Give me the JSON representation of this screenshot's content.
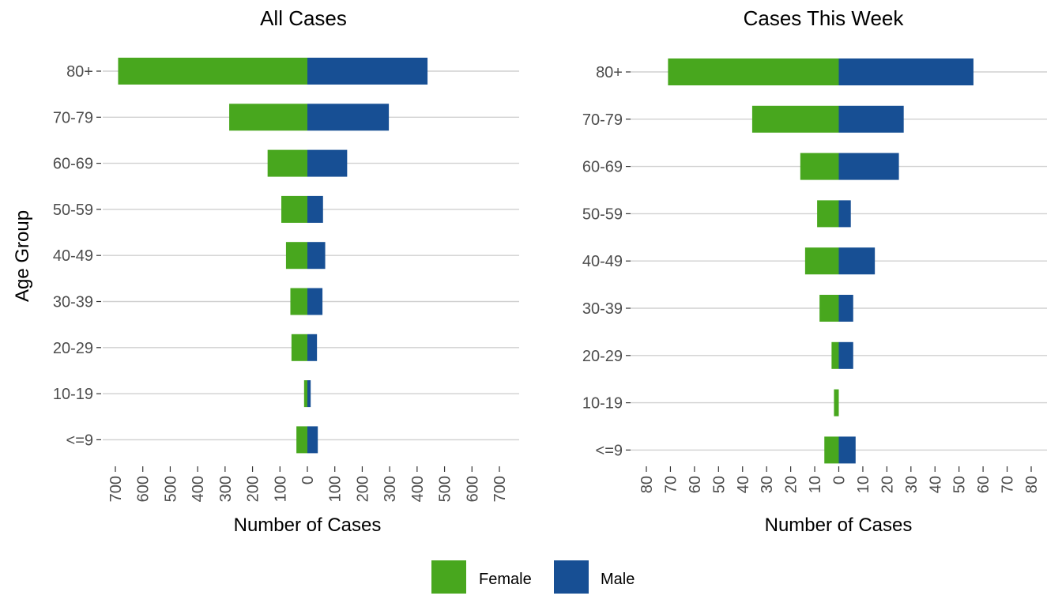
{
  "chart_data": [
    {
      "type": "bar",
      "orientation": "horizontal",
      "style": "population pyramid",
      "title": "All Cases",
      "xlabel": "Number of Cases",
      "ylabel": "Age Group",
      "categories": [
        "<=9",
        "10-19",
        "20-29",
        "30-39",
        "40-49",
        "50-59",
        "60-69",
        "70-79",
        "80+"
      ],
      "series": [
        {
          "name": "Female",
          "values": [
            40,
            12,
            58,
            62,
            78,
            95,
            145,
            285,
            690
          ]
        },
        {
          "name": "Male",
          "values": [
            38,
            12,
            35,
            55,
            65,
            57,
            145,
            297,
            438
          ]
        }
      ],
      "xlim": [
        -700,
        700
      ],
      "x_ticks": [
        -700,
        -600,
        -500,
        -400,
        -300,
        -200,
        -100,
        0,
        100,
        200,
        300,
        400,
        500,
        600,
        700
      ],
      "x_tick_labels": [
        "700",
        "600",
        "500",
        "400",
        "300",
        "200",
        "100",
        "0",
        "100",
        "200",
        "300",
        "400",
        "500",
        "600",
        "700"
      ],
      "grid": "horizontal"
    },
    {
      "type": "bar",
      "orientation": "horizontal",
      "style": "population pyramid",
      "title": "Cases This Week",
      "xlabel": "Number of Cases",
      "ylabel": "",
      "categories": [
        "<=9",
        "10-19",
        "20-29",
        "30-39",
        "40-49",
        "50-59",
        "60-69",
        "70-79",
        "80+"
      ],
      "series": [
        {
          "name": "Female",
          "values": [
            6,
            2,
            3,
            8,
            14,
            9,
            16,
            36,
            71
          ]
        },
        {
          "name": "Male",
          "values": [
            7,
            0,
            6,
            6,
            15,
            5,
            25,
            27,
            56
          ]
        }
      ],
      "xlim": [
        -80,
        80
      ],
      "x_ticks": [
        -80,
        -70,
        -60,
        -50,
        -40,
        -30,
        -20,
        -10,
        0,
        10,
        20,
        30,
        40,
        50,
        60,
        70,
        80
      ],
      "x_tick_labels": [
        "80",
        "70",
        "60",
        "50",
        "40",
        "30",
        "20",
        "10",
        "0",
        "10",
        "20",
        "30",
        "40",
        "50",
        "60",
        "70",
        "80"
      ],
      "grid": "horizontal"
    }
  ],
  "legend": {
    "position": "bottom",
    "items": [
      {
        "label": "Female",
        "color": "#48a71e"
      },
      {
        "label": "Male",
        "color": "#174f94"
      }
    ]
  },
  "colors": {
    "female": "#48a71e",
    "male": "#174f94",
    "grid": "#d0d0d0",
    "tick_text": "#4d4d4d"
  }
}
